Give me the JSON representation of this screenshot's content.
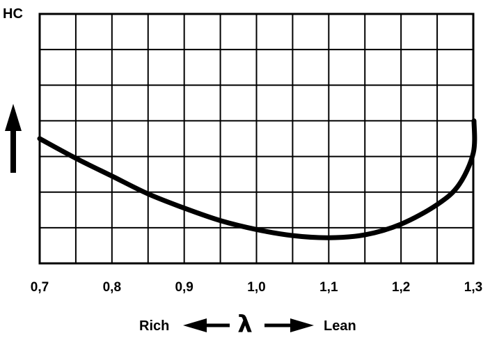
{
  "chart_data": {
    "type": "line",
    "title": "",
    "ylabel": "HC",
    "xlabel": {
      "left": "Rich",
      "symbol": "λ",
      "right": "Lean"
    },
    "xlim": [
      0.7,
      1.3
    ],
    "ylim": [
      0,
      7
    ],
    "x_ticks": [
      0.7,
      0.8,
      0.9,
      1.0,
      1.1,
      1.2,
      1.3
    ],
    "x_tick_labels": [
      "0,7",
      "0,8",
      "0,9",
      "1,0",
      "1,1",
      "1,2",
      "1,3"
    ],
    "y_tick_labels": [],
    "grid": true,
    "series": [
      {
        "x": [
          0.7,
          0.75,
          0.8,
          0.85,
          0.9,
          0.95,
          1.0,
          1.05,
          1.1,
          1.15,
          1.2,
          1.25,
          1.28,
          1.3,
          1.301
        ],
        "y": [
          3.5,
          2.95,
          2.45,
          1.95,
          1.55,
          1.2,
          0.95,
          0.78,
          0.72,
          0.8,
          1.1,
          1.65,
          2.2,
          3.1,
          4.0
        ]
      }
    ]
  }
}
